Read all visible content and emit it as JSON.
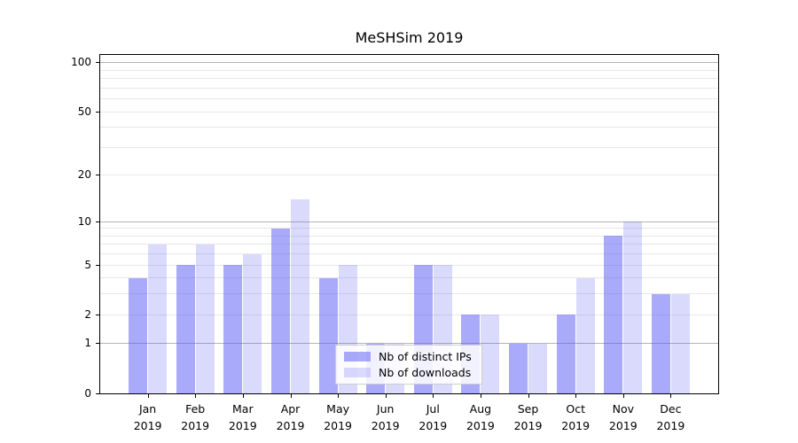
{
  "title": "MeSHSim 2019",
  "chart_data": {
    "type": "bar",
    "title": "MeSHSim 2019",
    "categories": [
      "Jan",
      "Feb",
      "Mar",
      "Apr",
      "May",
      "Jun",
      "Jul",
      "Aug",
      "Sep",
      "Oct",
      "Nov",
      "Dec"
    ],
    "year": "2019",
    "series": [
      {
        "name": "Nb of distinct IPs",
        "color": "rgba(85,85,245,0.5)",
        "values": [
          4,
          5,
          5,
          9,
          4,
          1,
          5,
          2,
          1,
          2,
          8,
          3
        ]
      },
      {
        "name": "Nb of downloads",
        "color": "rgba(85,85,245,0.22)",
        "values": [
          7,
          7,
          6,
          14,
          5,
          1,
          5,
          2,
          1,
          4,
          10,
          3
        ]
      }
    ],
    "xlabel": "",
    "ylabel": "",
    "yscale": "log1p",
    "ylim": [
      0,
      112
    ],
    "ytick_labels": [
      "0",
      "1",
      "2",
      "5",
      "10",
      "20",
      "50",
      "100"
    ],
    "ytick_values": [
      0,
      1,
      2,
      5,
      10,
      20,
      50,
      100
    ],
    "grid": true,
    "grid_major_values": [
      1,
      10,
      100
    ],
    "grid_minor_values": [
      2,
      3,
      4,
      5,
      6,
      7,
      8,
      9,
      20,
      30,
      40,
      50,
      60,
      70,
      80,
      90
    ],
    "legend_position": "lower center"
  },
  "colors": {
    "bar_distinct_ips": "rgba(85,85,245,0.5)",
    "bar_downloads": "rgba(85,85,245,0.22)",
    "grid_major": "#b4b4b4",
    "grid_minor": "#e7e7e7",
    "spine": "#000000",
    "legend_border": "#cccccc",
    "legend_background": "rgba(255,255,255,0.85)"
  }
}
